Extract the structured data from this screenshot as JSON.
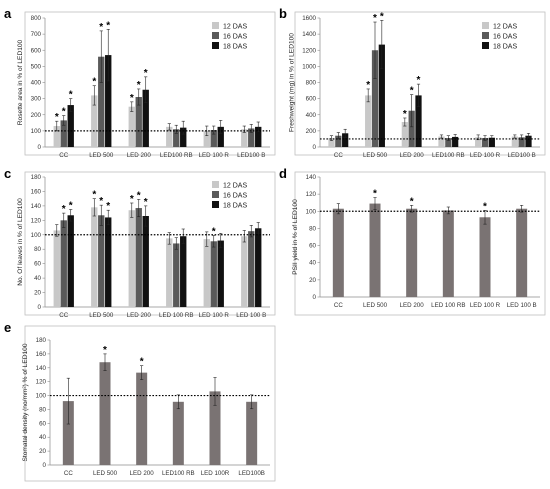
{
  "palette": {
    "light": "#c8c8c8",
    "mid": "#5a5a5a",
    "dark": "#111111",
    "single": "#7a7373",
    "axis": "#8c8c8c",
    "grid": "#d9d9d9",
    "frame": "#bfbfbf"
  },
  "panel_labels": [
    "a",
    "b",
    "c",
    "d",
    "e"
  ],
  "chart_data": [
    {
      "panel": "a",
      "type": "bar",
      "categories": [
        "CC",
        "LED 500",
        "LED 200",
        "LED100 RB",
        "LED 100 R",
        "LED100 B"
      ],
      "ylabel": "Rosette area in % of LED100",
      "xlabel": "",
      "ylim": [
        0,
        800
      ],
      "yticks": [
        0,
        100,
        200,
        300,
        400,
        500,
        600,
        700,
        800
      ],
      "grid": false,
      "reference_line": 100,
      "legend": "top-right",
      "series": [
        {
          "name": "12 DAS",
          "values": [
            130,
            320,
            250,
            125,
            100,
            110
          ],
          "errors": [
            30,
            60,
            30,
            20,
            30,
            20
          ],
          "sig": [
            true,
            true,
            true,
            false,
            false,
            false
          ]
        },
        {
          "name": "16 DAS",
          "values": [
            165,
            560,
            310,
            110,
            105,
            115
          ],
          "errors": [
            30,
            160,
            50,
            25,
            25,
            25
          ],
          "sig": [
            true,
            true,
            true,
            false,
            false,
            false
          ]
        },
        {
          "name": "18 DAS",
          "values": [
            260,
            570,
            355,
            120,
            125,
            125
          ],
          "errors": [
            40,
            160,
            80,
            40,
            40,
            30
          ],
          "sig": [
            true,
            true,
            true,
            false,
            false,
            false
          ]
        }
      ]
    },
    {
      "panel": "b",
      "type": "bar",
      "categories": [
        "CC",
        "LED 500",
        "LED 200",
        "LED100 RB",
        "LED 100 R",
        "LED100 B"
      ],
      "ylabel": "Freshweight (mg) in % of LED100",
      "xlabel": "",
      "ylim": [
        0,
        1600
      ],
      "yticks": [
        0,
        200,
        400,
        600,
        800,
        1000,
        1200,
        1400,
        1600
      ],
      "grid": false,
      "reference_line": 100,
      "legend": "top-right",
      "series": [
        {
          "name": "12 DAS",
          "values": [
            110,
            640,
            310,
            130,
            120,
            130
          ],
          "errors": [
            30,
            80,
            50,
            20,
            30,
            20
          ],
          "sig": [
            false,
            true,
            true,
            false,
            false,
            false
          ]
        },
        {
          "name": "16 DAS",
          "values": [
            140,
            1200,
            450,
            110,
            110,
            120
          ],
          "errors": [
            40,
            350,
            200,
            30,
            30,
            30
          ],
          "sig": [
            false,
            true,
            true,
            false,
            false,
            false
          ]
        },
        {
          "name": "18 DAS",
          "values": [
            170,
            1270,
            640,
            125,
            115,
            140
          ],
          "errors": [
            50,
            300,
            140,
            30,
            25,
            30
          ],
          "sig": [
            false,
            true,
            true,
            false,
            false,
            false
          ]
        }
      ]
    },
    {
      "panel": "c",
      "type": "bar",
      "categories": [
        "CC",
        "LED 500",
        "LED 200",
        "LED 100 RB",
        "LED 100 R",
        "LED 100 B"
      ],
      "ylabel": "No. Of leaves in % of LED100",
      "xlabel": "",
      "ylim": [
        0,
        180
      ],
      "yticks": [
        0,
        20,
        40,
        60,
        80,
        100,
        120,
        140,
        160,
        180
      ],
      "grid": false,
      "reference_line": 100,
      "legend": "top-right",
      "series": [
        {
          "name": "12 DAS",
          "values": [
            106,
            138,
            134,
            95,
            94,
            98
          ],
          "errors": [
            8,
            12,
            10,
            8,
            10,
            8
          ],
          "sig": [
            false,
            true,
            true,
            false,
            false,
            false
          ]
        },
        {
          "name": "16 DAS",
          "values": [
            120,
            127,
            137,
            88,
            91,
            105
          ],
          "errors": [
            10,
            14,
            12,
            8,
            8,
            8
          ],
          "sig": [
            true,
            true,
            true,
            false,
            true,
            false
          ]
        },
        {
          "name": "18 DAS",
          "values": [
            127,
            124,
            126,
            98,
            92,
            109
          ],
          "errors": [
            8,
            10,
            14,
            10,
            10,
            8
          ],
          "sig": [
            true,
            true,
            true,
            false,
            false,
            false
          ]
        }
      ]
    },
    {
      "panel": "d",
      "type": "bar",
      "categories": [
        "CC",
        "LED 500",
        "LED 200",
        "LED 100 RB",
        "LED 100 R",
        "LED 100 B"
      ],
      "ylabel": "PSII yield in % of LED100",
      "xlabel": "",
      "ylim": [
        0,
        140
      ],
      "yticks": [
        0,
        20,
        40,
        60,
        80,
        100,
        120,
        140
      ],
      "grid": false,
      "reference_line": 100,
      "series": [
        {
          "values": [
            103,
            109,
            103,
            101,
            93,
            103
          ],
          "errors": [
            6,
            7,
            4,
            4,
            8,
            4
          ],
          "sig": [
            false,
            true,
            true,
            false,
            true,
            false
          ]
        }
      ]
    },
    {
      "panel": "e",
      "type": "bar",
      "categories": [
        "CC",
        "LED 500",
        "LED 200",
        "LED100 RB",
        "LED 100R",
        "LED100B"
      ],
      "ylabel": "Stomatal density (no/mm²) % of LED100",
      "xlabel": "",
      "ylim": [
        0,
        180
      ],
      "yticks": [
        0,
        20,
        40,
        60,
        80,
        100,
        120,
        140,
        160,
        180
      ],
      "grid": false,
      "reference_line": 100,
      "series": [
        {
          "values": [
            92,
            148,
            133,
            91,
            106,
            91
          ],
          "errors": [
            33,
            12,
            10,
            10,
            20,
            10
          ],
          "sig": [
            false,
            true,
            true,
            false,
            false,
            false
          ]
        }
      ]
    }
  ]
}
